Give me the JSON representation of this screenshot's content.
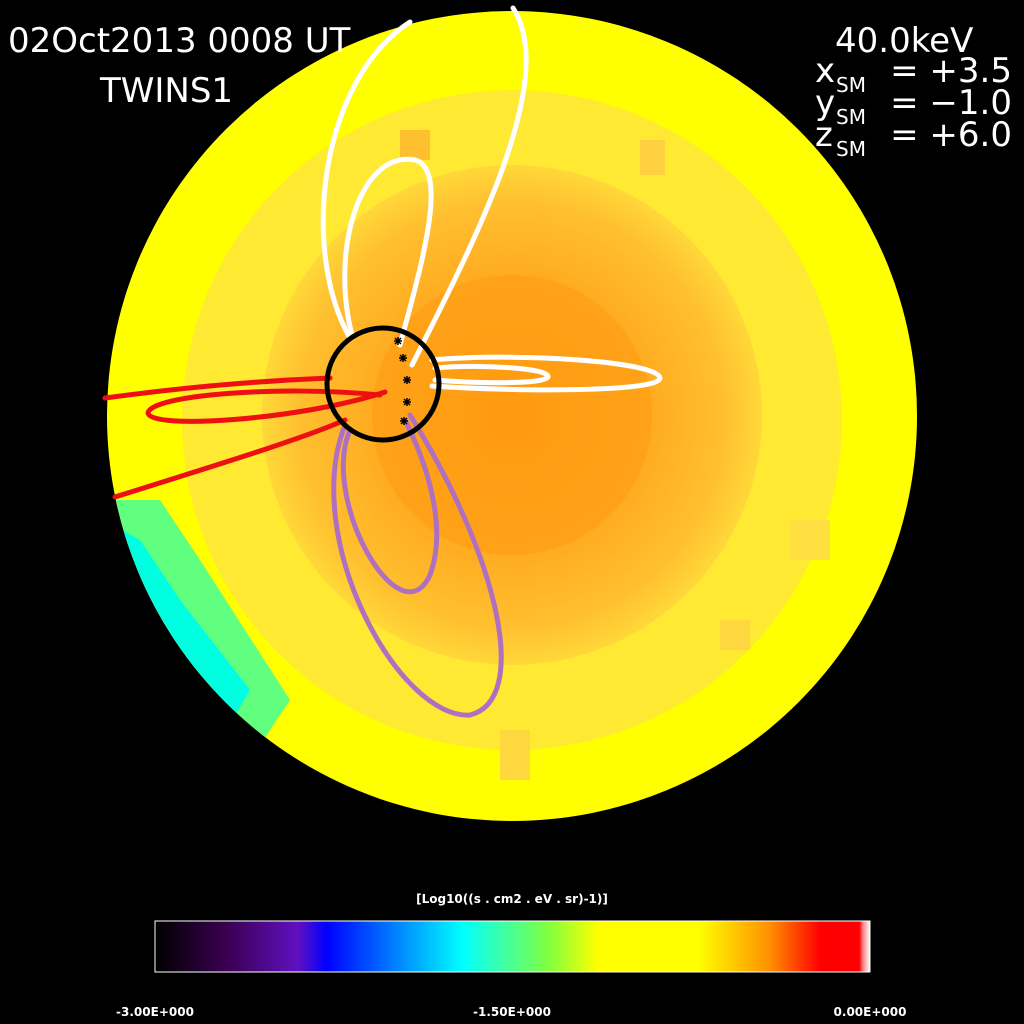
{
  "header": {
    "datetime": "02Oct2013 0008 UT",
    "spacecraft": "TWINS1",
    "energy": "40.0keV",
    "position": [
      {
        "var": "x",
        "sub": "SM",
        "value": "= +3.5"
      },
      {
        "var": "y",
        "sub": "SM",
        "value": "= −1.0"
      },
      {
        "var": "z",
        "sub": "SM",
        "value": "= +6.0"
      }
    ]
  },
  "colorbar": {
    "title": "[Log10((s . cm2 . eV . sr)-1)]",
    "labels": [
      "-3.00E+000",
      "-1.50E+000",
      "0.00E+000"
    ]
  }
}
